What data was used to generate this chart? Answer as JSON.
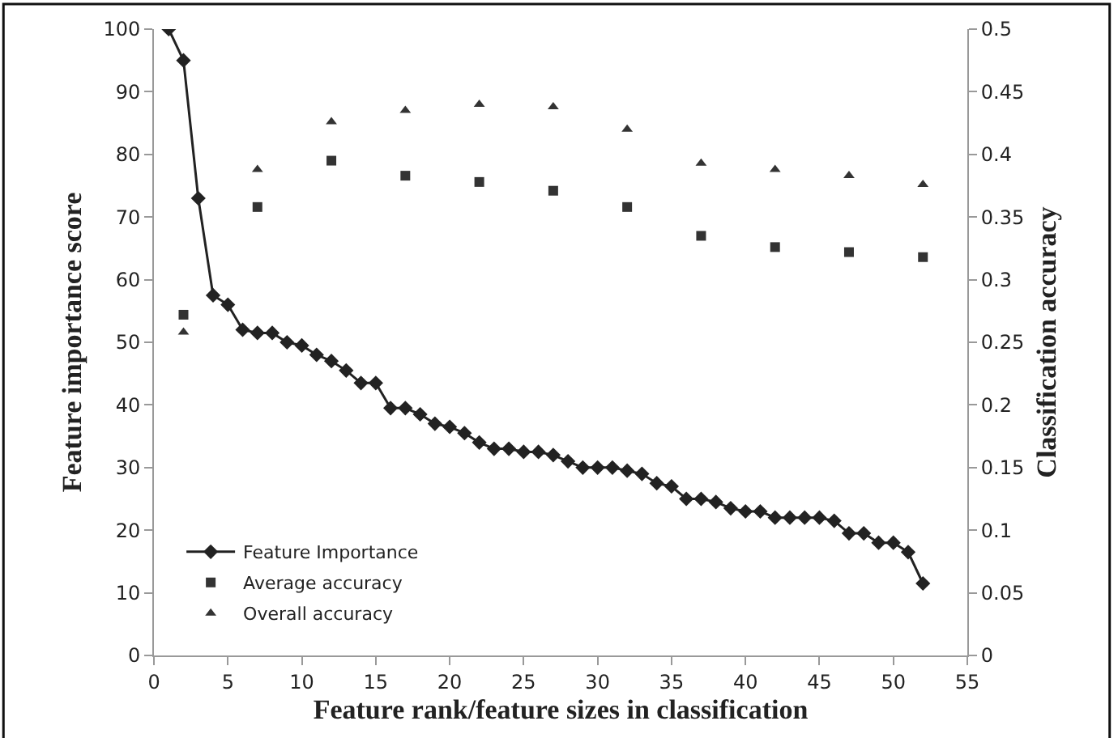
{
  "chart_data": {
    "type": "line",
    "xlabel": "Feature rank/feature sizes in classification",
    "ylabel": "Feature importance score",
    "y2label": "Classification accuracy",
    "xlim": [
      0,
      55
    ],
    "xticks": [
      0,
      5,
      10,
      15,
      20,
      25,
      30,
      35,
      40,
      45,
      50,
      55
    ],
    "ylim": [
      0,
      100
    ],
    "yticks": [
      0,
      10,
      20,
      30,
      40,
      50,
      60,
      70,
      80,
      90,
      100
    ],
    "y2lim": [
      0,
      0.5
    ],
    "y2ticks": [
      0,
      0.05,
      0.1,
      0.15,
      0.2,
      0.25,
      0.3,
      0.35,
      0.4,
      0.45,
      0.5
    ],
    "legend": "bottom left",
    "series": [
      {
        "name": "Feature Importance",
        "marker": "diamond",
        "color": "#222222",
        "x": [
          1,
          2,
          3,
          4,
          5,
          6,
          7,
          8,
          9,
          10,
          11,
          12,
          13,
          14,
          15,
          16,
          17,
          18,
          19,
          20,
          21,
          22,
          23,
          24,
          25,
          26,
          27,
          28,
          29,
          30,
          31,
          32,
          33,
          34,
          35,
          36,
          37,
          38,
          39,
          40,
          41,
          42,
          43,
          44,
          45,
          46,
          47,
          48,
          49,
          50,
          51,
          52
        ],
        "values": [
          100,
          95,
          73,
          57.5,
          56,
          52,
          51.5,
          51.5,
          50,
          49.5,
          48,
          47,
          45.5,
          43.5,
          43.5,
          39.5,
          39.5,
          38.5,
          37,
          36.5,
          35.5,
          34,
          33,
          33,
          32.5,
          32.5,
          32,
          31,
          30,
          30,
          30,
          29.5,
          29,
          27.5,
          27,
          25,
          25,
          24.5,
          23.5,
          23,
          23,
          22,
          22,
          22,
          22,
          21.5,
          19.5,
          19.5,
          18,
          18,
          16.5,
          11.5
        ]
      },
      {
        "name": "Average accuracy",
        "type": "scatter",
        "marker": "square",
        "axis": "y2",
        "color": "#333333",
        "x": [
          2,
          7,
          12,
          17,
          22,
          27,
          32,
          37,
          42,
          47,
          52
        ],
        "values": [
          0.272,
          0.358,
          0.395,
          0.383,
          0.378,
          0.371,
          0.358,
          0.335,
          0.326,
          0.322,
          0.318
        ]
      },
      {
        "name": "Overall accuracy",
        "type": "scatter",
        "marker": "triangle",
        "axis": "y2",
        "color": "#333333",
        "x": [
          2,
          7,
          12,
          17,
          22,
          27,
          32,
          37,
          42,
          47,
          52
        ],
        "values": [
          0.258,
          0.388,
          0.426,
          0.435,
          0.44,
          0.438,
          0.42,
          0.393,
          0.388,
          0.383,
          0.376
        ]
      }
    ]
  }
}
